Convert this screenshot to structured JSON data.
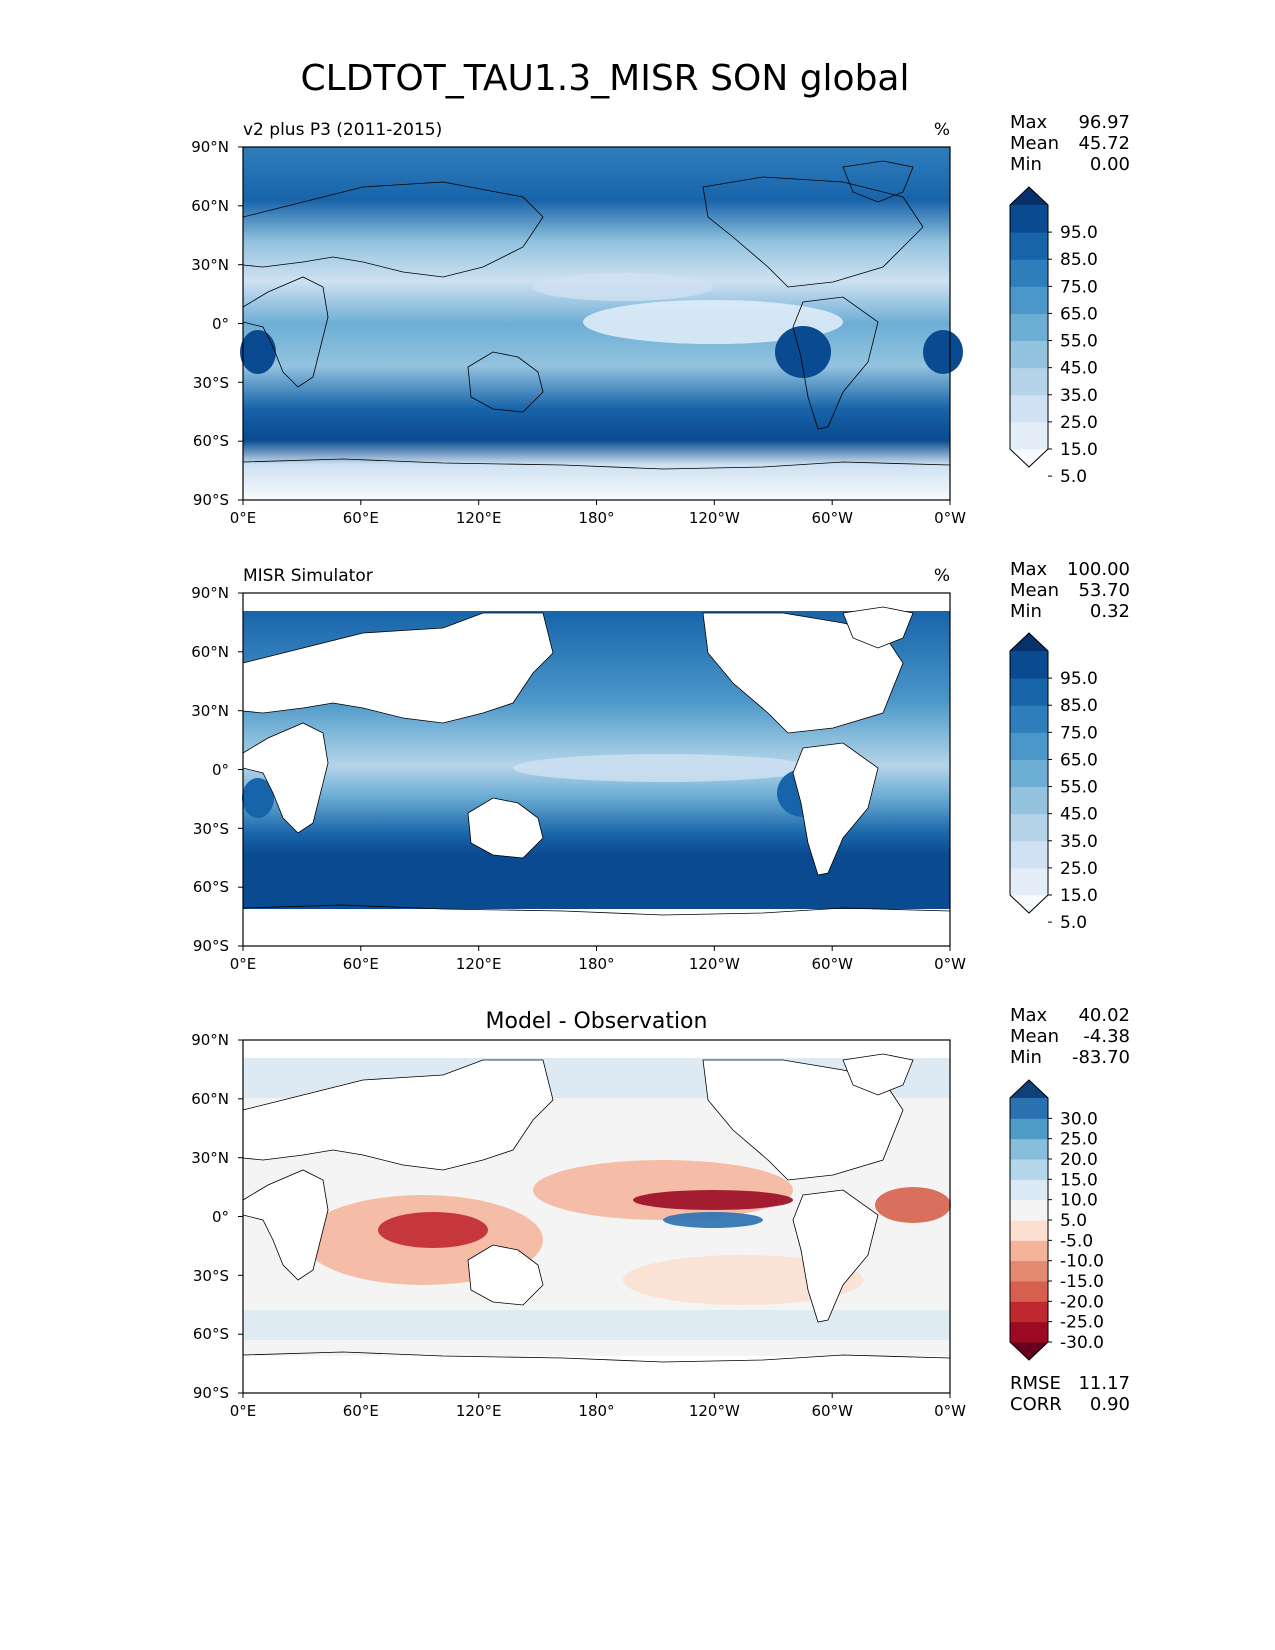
{
  "title": "CLDTOT_TAU1.3_MISR SON global",
  "lat_labels": [
    "90°N",
    "60°N",
    "30°N",
    "0°",
    "30°S",
    "60°S",
    "90°S"
  ],
  "lon_labels": [
    "0°E",
    "60°E",
    "120°E",
    "180°",
    "120°W",
    "60°W",
    "0°W"
  ],
  "panels": [
    {
      "name": "model",
      "left_title": "v2 plus P3 (2011-2015)",
      "center_title": "",
      "units": "%",
      "stats": [
        {
          "label": "Max",
          "value": "96.97"
        },
        {
          "label": "Mean",
          "value": "45.72"
        },
        {
          "label": "Min",
          "value": "0.00"
        }
      ],
      "colorbar_labels": [
        "95.0",
        "85.0",
        "75.0",
        "65.0",
        "55.0",
        "45.0",
        "35.0",
        "25.0",
        "15.0",
        "5.0"
      ],
      "colorbar_colors": [
        "#f7fbff",
        "#e3eef9",
        "#cfe1f2",
        "#b5d4e9",
        "#93c3df",
        "#6daed5",
        "#4b97c9",
        "#2f7ebc",
        "#1864aa",
        "#0a4a90",
        "#08306b"
      ],
      "footer_stats": []
    },
    {
      "name": "observation",
      "left_title": "MISR Simulator",
      "center_title": "",
      "units": "%",
      "stats": [
        {
          "label": "Max",
          "value": "100.00"
        },
        {
          "label": "Mean",
          "value": "53.70"
        },
        {
          "label": "Min",
          "value": "0.32"
        }
      ],
      "colorbar_labels": [
        "95.0",
        "85.0",
        "75.0",
        "65.0",
        "55.0",
        "45.0",
        "35.0",
        "25.0",
        "15.0",
        "5.0"
      ],
      "colorbar_colors": [
        "#f7fbff",
        "#e3eef9",
        "#cfe1f2",
        "#b5d4e9",
        "#93c3df",
        "#6daed5",
        "#4b97c9",
        "#2f7ebc",
        "#1864aa",
        "#0a4a90",
        "#08306b"
      ],
      "footer_stats": []
    },
    {
      "name": "difference",
      "left_title": "",
      "center_title": "Model - Observation",
      "units": "",
      "stats": [
        {
          "label": "Max",
          "value": "40.02"
        },
        {
          "label": "Mean",
          "value": "-4.38"
        },
        {
          "label": "Min",
          "value": "-83.70"
        }
      ],
      "colorbar_labels": [
        "30.0",
        "25.0",
        "20.0",
        "15.0",
        "10.0",
        "5.0",
        "-5.0",
        "-10.0",
        "-15.0",
        "-20.0",
        "-25.0",
        "-30.0"
      ],
      "colorbar_colors": [
        "#67001f",
        "#9b0a22",
        "#c0282f",
        "#d6604d",
        "#e48a70",
        "#f4b39a",
        "#fbe0d2",
        "#f4f4f4",
        "#dae9f3",
        "#b4d6ea",
        "#87bedc",
        "#4f9bc8",
        "#2a71b1",
        "#103f7a"
      ],
      "footer_stats": [
        {
          "label": "RMSE",
          "value": "11.17"
        },
        {
          "label": "CORR",
          "value": "0.90"
        }
      ]
    }
  ]
}
